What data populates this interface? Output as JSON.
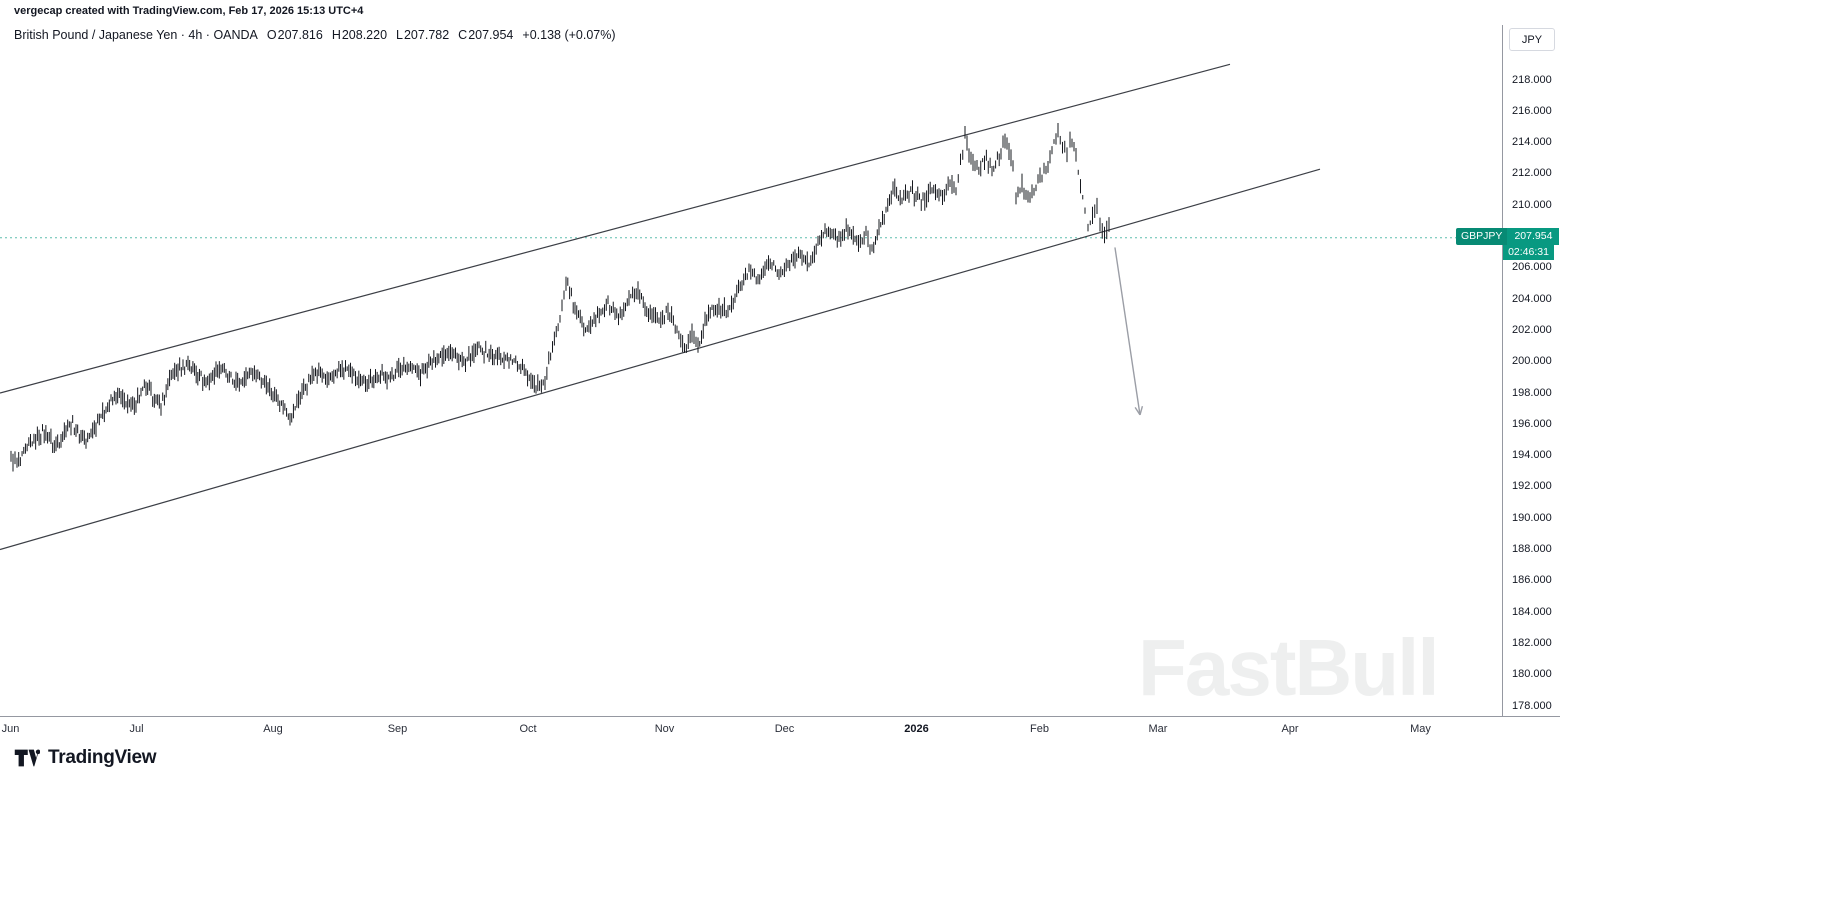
{
  "attribution": "vergecap created with TradingView.com, Feb 17, 2026 15:13 UTC+4",
  "symbol_header": {
    "title": "British Pound / Japanese Yen · 4h · OANDA",
    "ohlc": [
      {
        "label": "O",
        "value": "207.816"
      },
      {
        "label": "H",
        "value": "208.220"
      },
      {
        "label": "L",
        "value": "207.782"
      },
      {
        "label": "C",
        "value": "207.954"
      }
    ],
    "change": "+0.138 (+0.07%)"
  },
  "price_axis": {
    "currency_button": "JPY",
    "ticks": [
      "218.000",
      "216.000",
      "214.000",
      "212.000",
      "210.000",
      "208.000",
      "206.000",
      "204.000",
      "202.000",
      "200.000",
      "198.000",
      "196.000",
      "194.000",
      "192.000",
      "190.000",
      "188.000",
      "186.000",
      "184.000",
      "182.000",
      "180.000",
      "178.000"
    ]
  },
  "time_axis": {
    "labels": [
      {
        "label": "Jun",
        "pos": 0.007
      },
      {
        "label": "Jul",
        "pos": 0.091
      },
      {
        "label": "Aug",
        "pos": 0.182
      },
      {
        "label": "Sep",
        "pos": 0.265
      },
      {
        "label": "Oct",
        "pos": 0.352
      },
      {
        "label": "Nov",
        "pos": 0.443
      },
      {
        "label": "Dec",
        "pos": 0.523
      },
      {
        "label": "2026",
        "pos": 0.611
      },
      {
        "label": "Feb",
        "pos": 0.693
      },
      {
        "label": "Mar",
        "pos": 0.772
      },
      {
        "label": "Apr",
        "pos": 0.86
      },
      {
        "label": "May",
        "pos": 0.947
      }
    ]
  },
  "price_label": {
    "symbol": "GBPJPY",
    "price": "207.954",
    "countdown": "02:46:31",
    "color": "#089981"
  },
  "watermark": "FastBull",
  "logo_text": "TradingView",
  "chart_data": {
    "type": "candlestick",
    "symbol": "GBPJPY",
    "timeframe": "4h",
    "exchange": "OANDA",
    "title": "British Pound / Japanese Yen",
    "y_axis": {
      "min": 178,
      "max": 218,
      "tick_step": 2,
      "unit": "JPY"
    },
    "last_price": 207.954,
    "candle_color": "#16181e",
    "accent_color": "#089981",
    "grid": false,
    "series": [
      [
        0.007,
        194.0
      ],
      [
        0.011,
        193.3
      ],
      [
        0.02,
        194.8
      ],
      [
        0.028,
        195.6
      ],
      [
        0.037,
        194.6
      ],
      [
        0.047,
        196.1
      ],
      [
        0.057,
        194.9
      ],
      [
        0.067,
        196.6
      ],
      [
        0.077,
        197.9
      ],
      [
        0.087,
        197.1
      ],
      [
        0.097,
        198.4
      ],
      [
        0.107,
        197.2
      ],
      [
        0.115,
        199.2
      ],
      [
        0.125,
        199.9
      ],
      [
        0.137,
        198.7
      ],
      [
        0.147,
        199.6
      ],
      [
        0.157,
        198.6
      ],
      [
        0.167,
        199.3
      ],
      [
        0.175,
        198.9
      ],
      [
        0.185,
        197.6
      ],
      [
        0.193,
        196.4
      ],
      [
        0.201,
        198.0
      ],
      [
        0.21,
        199.4
      ],
      [
        0.22,
        198.9
      ],
      [
        0.23,
        199.7
      ],
      [
        0.24,
        198.7
      ],
      [
        0.25,
        199.0
      ],
      [
        0.261,
        199.1
      ],
      [
        0.27,
        199.9
      ],
      [
        0.28,
        199.2
      ],
      [
        0.29,
        200.3
      ],
      [
        0.3,
        200.7
      ],
      [
        0.31,
        199.9
      ],
      [
        0.319,
        200.9
      ],
      [
        0.328,
        200.4
      ],
      [
        0.339,
        200.2
      ],
      [
        0.348,
        199.7
      ],
      [
        0.357,
        198.4
      ],
      [
        0.363,
        198.6
      ],
      [
        0.368,
        201.3
      ],
      [
        0.373,
        202.6
      ],
      [
        0.377,
        205.2
      ],
      [
        0.383,
        203.3
      ],
      [
        0.39,
        202.1
      ],
      [
        0.398,
        202.9
      ],
      [
        0.405,
        203.6
      ],
      [
        0.412,
        202.8
      ],
      [
        0.419,
        203.9
      ],
      [
        0.425,
        204.3
      ],
      [
        0.432,
        203.1
      ],
      [
        0.439,
        202.6
      ],
      [
        0.445,
        203.3
      ],
      [
        0.451,
        202.1
      ],
      [
        0.456,
        200.7
      ],
      [
        0.461,
        201.9
      ],
      [
        0.465,
        201.0
      ],
      [
        0.472,
        203.1
      ],
      [
        0.479,
        203.6
      ],
      [
        0.485,
        203.1
      ],
      [
        0.492,
        204.6
      ],
      [
        0.499,
        205.9
      ],
      [
        0.505,
        205.1
      ],
      [
        0.512,
        206.4
      ],
      [
        0.519,
        205.7
      ],
      [
        0.525,
        206.1
      ],
      [
        0.532,
        206.9
      ],
      [
        0.539,
        206.3
      ],
      [
        0.545,
        207.6
      ],
      [
        0.552,
        208.4
      ],
      [
        0.559,
        207.8
      ],
      [
        0.565,
        208.5
      ],
      [
        0.572,
        207.5
      ],
      [
        0.577,
        208.1
      ],
      [
        0.581,
        207.2
      ],
      [
        0.588,
        209.2
      ],
      [
        0.595,
        211.0
      ],
      [
        0.601,
        210.4
      ],
      [
        0.608,
        210.9
      ],
      [
        0.615,
        210.2
      ],
      [
        0.621,
        211.0
      ],
      [
        0.628,
        210.5
      ],
      [
        0.633,
        211.4
      ],
      [
        0.637,
        211.0
      ],
      [
        0.64,
        212.8
      ],
      [
        0.643,
        214.3
      ],
      [
        0.647,
        213.0
      ],
      [
        0.651,
        212.2
      ],
      [
        0.656,
        212.9
      ],
      [
        0.661,
        212.4
      ],
      [
        0.667,
        213.4
      ],
      [
        0.671,
        214.2
      ],
      [
        0.675,
        212.3
      ],
      [
        0.677,
        210.4
      ],
      [
        0.681,
        211.3
      ],
      [
        0.685,
        210.4
      ],
      [
        0.689,
        211.0
      ],
      [
        0.693,
        211.9
      ],
      [
        0.697,
        212.4
      ],
      [
        0.701,
        213.8
      ],
      [
        0.705,
        214.8
      ],
      [
        0.708,
        213.9
      ],
      [
        0.711,
        213.4
      ],
      [
        0.713,
        214.3
      ],
      [
        0.717,
        213.2
      ],
      [
        0.72,
        211.0
      ],
      [
        0.723,
        209.8
      ],
      [
        0.725,
        208.6
      ],
      [
        0.728,
        209.4
      ],
      [
        0.731,
        209.9
      ],
      [
        0.733,
        208.8
      ],
      [
        0.736,
        208.3
      ],
      [
        0.739,
        208.6
      ],
      [
        0.741,
        207.95
      ]
    ],
    "trendlines": [
      {
        "name": "channel-upper",
        "points": [
          [
            0.0,
            198.0
          ],
          [
            0.82,
            219.0
          ]
        ],
        "color": "#3c3f46"
      },
      {
        "name": "channel-lower",
        "points": [
          [
            0.0,
            188.0
          ],
          [
            0.88,
            212.3
          ]
        ],
        "color": "#3c3f46"
      }
    ],
    "arrow": {
      "from": [
        0.7433,
        207.3
      ],
      "to": [
        0.76,
        196.6
      ],
      "color": "#9b9ea6"
    }
  }
}
